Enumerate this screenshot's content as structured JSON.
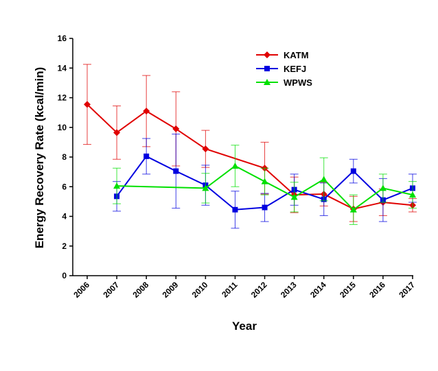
{
  "chart_data": {
    "type": "line",
    "title": "",
    "xlabel": "Year",
    "ylabel": "Energy Recovery Rate (kcal/min)",
    "ylim": [
      0,
      16
    ],
    "yticks": [
      "0",
      "2",
      "4",
      "6",
      "8",
      "10",
      "12",
      "14",
      "16"
    ],
    "categories": [
      "2006",
      "2007",
      "2008",
      "2009",
      "2010",
      "2011",
      "2012",
      "2013",
      "2014",
      "2015",
      "2016",
      "2017"
    ],
    "grid": false,
    "legend_position": "top-right",
    "series": [
      {
        "name": "KATM",
        "color": "#e00000",
        "marker": "diamond",
        "values": [
          11.55,
          9.65,
          11.1,
          9.9,
          8.55,
          null,
          7.25,
          5.45,
          5.5,
          4.5,
          4.95,
          4.75
        ],
        "errors": [
          2.7,
          1.8,
          2.4,
          2.5,
          1.25,
          null,
          1.75,
          1.2,
          0.8,
          0.85,
          0.9,
          0.45
        ]
      },
      {
        "name": "KEFJ",
        "color": "#0000e0",
        "marker": "square",
        "values": [
          null,
          5.35,
          8.05,
          7.05,
          6.1,
          4.45,
          4.6,
          5.8,
          5.15,
          7.05,
          5.1,
          5.9
        ],
        "errors": [
          null,
          1.0,
          1.2,
          2.5,
          1.35,
          1.25,
          0.95,
          1.05,
          1.1,
          0.8,
          1.45,
          0.95
        ]
      },
      {
        "name": "WPWS",
        "color": "#00e000",
        "marker": "triangle",
        "values": [
          null,
          6.05,
          null,
          null,
          5.9,
          7.4,
          6.35,
          5.3,
          6.5,
          4.45,
          5.9,
          5.45
        ],
        "errors": [
          null,
          1.2,
          null,
          null,
          1.0,
          1.4,
          0.9,
          1.0,
          1.45,
          1.0,
          0.95,
          0.9
        ]
      }
    ]
  }
}
